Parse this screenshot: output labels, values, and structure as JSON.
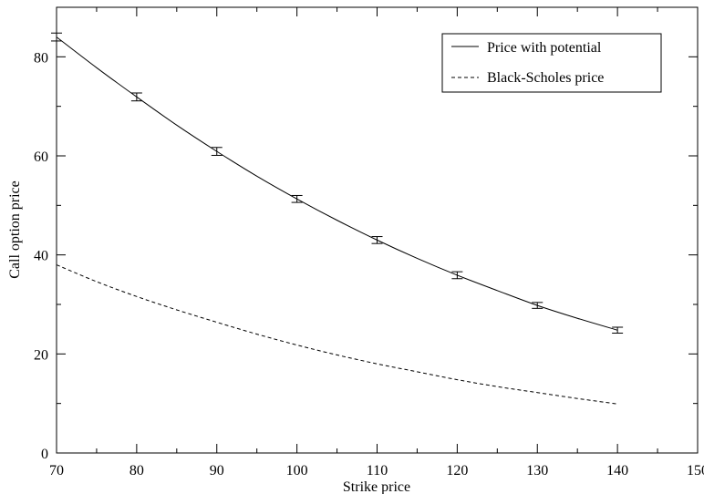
{
  "chart_data": {
    "type": "line",
    "title": "",
    "xlabel": "Strike price",
    "ylabel": "Call option price",
    "xlim": [
      70,
      150
    ],
    "ylim": [
      0,
      90
    ],
    "x_ticks": [
      70,
      80,
      90,
      100,
      110,
      120,
      130,
      140,
      150
    ],
    "y_ticks": [
      0,
      20,
      40,
      60,
      80
    ],
    "grid": false,
    "legend_position": "top-right",
    "series": [
      {
        "name": "Price with potential",
        "style": "solid",
        "color": "#000000",
        "curve_x": [
          70,
          75,
          80,
          85,
          90,
          95,
          100,
          105,
          110,
          115,
          120,
          125,
          130,
          135,
          140
        ],
        "curve_y": [
          84.0,
          77.8,
          71.9,
          66.2,
          60.9,
          55.9,
          51.3,
          47.0,
          43.0,
          39.3,
          35.9,
          32.8,
          29.8,
          27.2,
          24.8
        ],
        "points": [
          {
            "x": 70,
            "y": 84.0,
            "err": 0.8
          },
          {
            "x": 80,
            "y": 71.9,
            "err": 0.8
          },
          {
            "x": 90,
            "y": 60.9,
            "err": 0.8
          },
          {
            "x": 100,
            "y": 51.3,
            "err": 0.7
          },
          {
            "x": 110,
            "y": 43.0,
            "err": 0.7
          },
          {
            "x": 120,
            "y": 35.9,
            "err": 0.7
          },
          {
            "x": 130,
            "y": 29.8,
            "err": 0.6
          },
          {
            "x": 140,
            "y": 24.8,
            "err": 0.6
          }
        ]
      },
      {
        "name": "Black-Scholes price",
        "style": "dashed",
        "color": "#000000",
        "curve_x": [
          70,
          75,
          80,
          85,
          90,
          95,
          100,
          105,
          110,
          115,
          120,
          125,
          130,
          135,
          140
        ],
        "curve_y": [
          38.0,
          34.6,
          31.6,
          28.9,
          26.4,
          24.0,
          21.8,
          19.8,
          18.0,
          16.4,
          14.8,
          13.4,
          12.2,
          11.0,
          9.9
        ]
      }
    ]
  }
}
